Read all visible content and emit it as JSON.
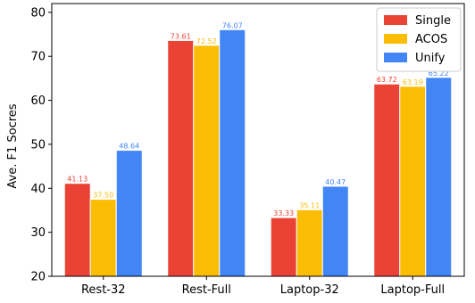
{
  "chart_data": {
    "type": "bar",
    "categories": [
      "Rest-32",
      "Rest-Full",
      "Laptop-32",
      "Laptop-Full"
    ],
    "series": [
      {
        "name": "Single",
        "color": "#ea4335",
        "values": [
          41.13,
          73.61,
          33.33,
          63.72
        ],
        "labels": [
          "41.13",
          "73.61",
          "33.33",
          "63.72"
        ]
      },
      {
        "name": "ACOS",
        "color": "#fbbc04",
        "values": [
          37.5,
          72.52,
          35.11,
          63.19
        ],
        "labels": [
          "37.50",
          "72.52",
          "35.11",
          "63.19"
        ]
      },
      {
        "name": "Unify",
        "color": "#4285f4",
        "values": [
          48.64,
          76.07,
          40.47,
          65.22
        ],
        "labels": [
          "48.64",
          "76.07",
          "40.47",
          "65.22"
        ]
      }
    ],
    "ylabel": "Ave. F1 Socres",
    "xlabel": "",
    "title": "",
    "ylim": [
      20,
      82
    ],
    "yticks": [
      20,
      30,
      40,
      50,
      60,
      70,
      80
    ],
    "grid": false,
    "legend_position": "top-right"
  }
}
